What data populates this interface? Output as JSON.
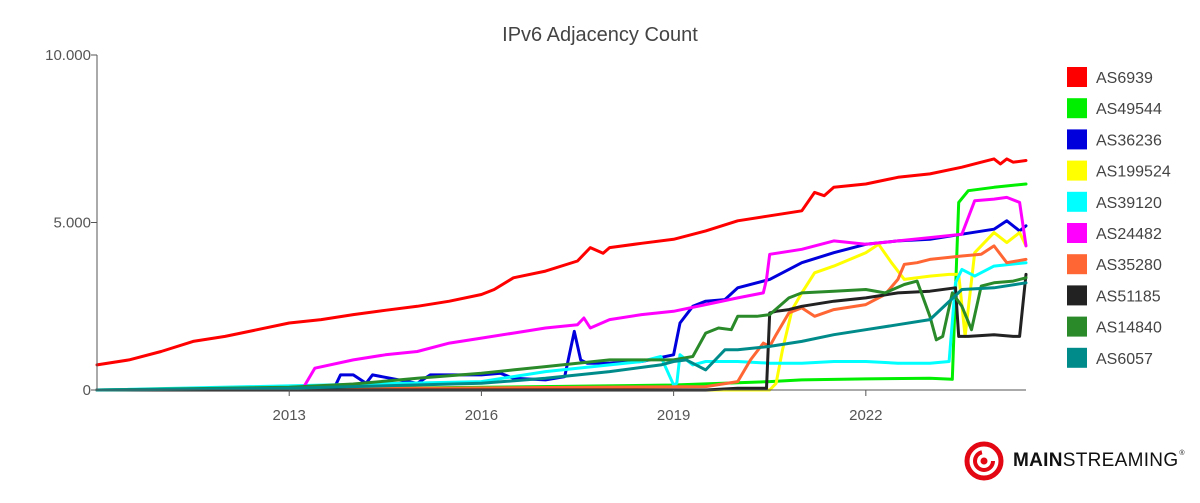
{
  "chart_data": {
    "type": "line",
    "title": "IPv6 Adjacency Count",
    "xlabel": "",
    "ylabel": "",
    "xlim": [
      2010.0,
      2024.5
    ],
    "ylim": [
      0,
      10000
    ],
    "x_ticks": [
      2013,
      2016,
      2019,
      2022
    ],
    "x_tick_labels": [
      "2013",
      "2016",
      "2019",
      "2022"
    ],
    "y_ticks": [
      0,
      5000,
      10000
    ],
    "y_tick_labels": [
      "0",
      "5.000",
      "10.000"
    ],
    "grid": false,
    "legend_position": "right",
    "series": [
      {
        "name": "AS6939",
        "color": "#ff0000",
        "x": [
          2010.0,
          2010.5,
          2011.0,
          2011.5,
          2012.0,
          2012.5,
          2013.0,
          2013.5,
          2014.0,
          2014.5,
          2015.0,
          2015.5,
          2016.0,
          2016.2,
          2016.5,
          2017.0,
          2017.5,
          2017.7,
          2017.9,
          2018.0,
          2018.5,
          2019.0,
          2019.5,
          2020.0,
          2020.5,
          2021.0,
          2021.2,
          2021.35,
          2021.5,
          2022.0,
          2022.5,
          2023.0,
          2023.5,
          2023.8,
          2024.0,
          2024.1,
          2024.2,
          2024.3,
          2024.5
        ],
        "y": [
          750,
          900,
          1150,
          1450,
          1600,
          1800,
          2000,
          2100,
          2250,
          2380,
          2500,
          2650,
          2850,
          3000,
          3350,
          3550,
          3850,
          4250,
          4080,
          4250,
          4380,
          4500,
          4750,
          5050,
          5200,
          5350,
          5900,
          5800,
          6050,
          6150,
          6350,
          6450,
          6650,
          6800,
          6900,
          6750,
          6900,
          6800,
          6850
        ]
      },
      {
        "name": "AS49544",
        "color": "#00ee00",
        "x": [
          2010.0,
          2013.0,
          2016.0,
          2019.0,
          2020.5,
          2021.0,
          2022.0,
          2023.0,
          2023.35,
          2023.45,
          2023.6,
          2024.0,
          2024.5
        ],
        "y": [
          0,
          30,
          80,
          150,
          250,
          300,
          330,
          350,
          320,
          5600,
          5950,
          6050,
          6150
        ]
      },
      {
        "name": "AS36236",
        "color": "#0000dd",
        "x": [
          2010.0,
          2013.5,
          2013.7,
          2013.8,
          2014.0,
          2014.2,
          2014.3,
          2015.0,
          2015.2,
          2015.5,
          2016.0,
          2016.3,
          2016.5,
          2017.0,
          2017.3,
          2017.45,
          2017.55,
          2017.65,
          2018.0,
          2018.5,
          2019.0,
          2019.1,
          2019.3,
          2019.5,
          2019.8,
          2020.0,
          2020.5,
          2020.8,
          2021.0,
          2021.5,
          2022.0,
          2022.5,
          2023.0,
          2023.5,
          2024.0,
          2024.2,
          2024.4,
          2024.5
        ],
        "y": [
          0,
          0,
          50,
          450,
          450,
          200,
          450,
          200,
          450,
          450,
          450,
          500,
          350,
          300,
          400,
          1750,
          900,
          800,
          800,
          850,
          1050,
          2000,
          2500,
          2650,
          2700,
          3050,
          3300,
          3600,
          3800,
          4100,
          4350,
          4450,
          4500,
          4650,
          4800,
          5050,
          4750,
          4900
        ]
      },
      {
        "name": "AS199524",
        "color": "#ffff00",
        "x": [
          2010.0,
          2020.5,
          2020.6,
          2020.7,
          2020.85,
          2021.0,
          2021.2,
          2021.5,
          2022.0,
          2022.2,
          2022.4,
          2022.6,
          2022.8,
          2023.0,
          2023.3,
          2023.45,
          2023.55,
          2023.7,
          2024.0,
          2024.2,
          2024.4,
          2024.5
        ],
        "y": [
          0,
          0,
          200,
          1200,
          2400,
          2900,
          3500,
          3700,
          4100,
          4350,
          3800,
          3300,
          3350,
          3400,
          3450,
          3450,
          1600,
          4100,
          4700,
          4400,
          4700,
          4300
        ]
      },
      {
        "name": "AS39120",
        "color": "#00ffff",
        "x": [
          2010.0,
          2016.0,
          2016.5,
          2017.0,
          2017.5,
          2018.0,
          2018.5,
          2018.8,
          2019.0,
          2019.05,
          2019.1,
          2019.3,
          2019.5,
          2020.0,
          2020.5,
          2021.0,
          2021.5,
          2022.0,
          2022.5,
          2023.0,
          2023.3,
          2023.4,
          2023.5,
          2023.7,
          2024.0,
          2024.5
        ],
        "y": [
          0,
          250,
          400,
          550,
          650,
          750,
          850,
          1000,
          150,
          200,
          1050,
          750,
          850,
          850,
          800,
          800,
          850,
          850,
          800,
          800,
          850,
          3200,
          3600,
          3400,
          3700,
          3800
        ]
      },
      {
        "name": "AS24482",
        "color": "#ff00ff",
        "x": [
          2010.0,
          2013.2,
          2013.4,
          2014.0,
          2014.5,
          2015.0,
          2015.5,
          2016.0,
          2016.5,
          2017.0,
          2017.5,
          2017.6,
          2017.7,
          2018.0,
          2018.5,
          2019.0,
          2019.5,
          2020.0,
          2020.4,
          2020.45,
          2020.5,
          2021.0,
          2021.5,
          2022.0,
          2022.5,
          2023.0,
          2023.5,
          2023.7,
          2024.0,
          2024.2,
          2024.4,
          2024.5
        ],
        "y": [
          0,
          0,
          650,
          900,
          1050,
          1150,
          1400,
          1550,
          1700,
          1850,
          1950,
          2150,
          1850,
          2100,
          2250,
          2350,
          2550,
          2750,
          2900,
          3300,
          4050,
          4200,
          4450,
          4350,
          4450,
          4550,
          4650,
          5650,
          5700,
          5750,
          5600,
          4300
        ]
      },
      {
        "name": "AS35280",
        "color": "#ff6633",
        "x": [
          2010.0,
          2019.5,
          2020.0,
          2020.2,
          2020.4,
          2020.5,
          2020.6,
          2020.8,
          2021.0,
          2021.2,
          2021.5,
          2022.0,
          2022.3,
          2022.5,
          2022.6,
          2022.8,
          2023.0,
          2023.5,
          2023.8,
          2024.0,
          2024.2,
          2024.5
        ],
        "y": [
          0,
          100,
          250,
          900,
          1400,
          1300,
          1650,
          2300,
          2450,
          2200,
          2400,
          2550,
          2850,
          3300,
          3750,
          3800,
          3900,
          4000,
          4050,
          4300,
          3800,
          3900
        ]
      },
      {
        "name": "AS51185",
        "color": "#222222",
        "x": [
          2010.0,
          2019.5,
          2020.0,
          2020.45,
          2020.5,
          2020.6,
          2020.8,
          2021.0,
          2021.5,
          2022.0,
          2022.5,
          2023.0,
          2023.4,
          2023.45,
          2023.6,
          2024.0,
          2024.3,
          2024.4,
          2024.5
        ],
        "y": [
          0,
          0,
          50,
          50,
          2300,
          2350,
          2400,
          2500,
          2650,
          2750,
          2900,
          2950,
          3050,
          1600,
          1600,
          1650,
          1600,
          1600,
          3450
        ]
      },
      {
        "name": "AS14840",
        "color": "#2a8a2a",
        "x": [
          2010.0,
          2013.0,
          2014.0,
          2015.0,
          2016.0,
          2016.5,
          2017.0,
          2017.5,
          2018.0,
          2018.5,
          2019.0,
          2019.3,
          2019.5,
          2019.7,
          2019.9,
          2020.0,
          2020.3,
          2020.5,
          2020.8,
          2021.0,
          2021.5,
          2022.0,
          2022.3,
          2022.6,
          2022.8,
          2023.0,
          2023.1,
          2023.2,
          2023.35,
          2023.5,
          2023.65,
          2023.8,
          2024.0,
          2024.3,
          2024.5
        ],
        "y": [
          0,
          80,
          180,
          350,
          500,
          600,
          700,
          800,
          900,
          900,
          900,
          1000,
          1700,
          1850,
          1800,
          2200,
          2200,
          2250,
          2750,
          2900,
          2950,
          3000,
          2900,
          3150,
          3250,
          2200,
          1500,
          1600,
          2900,
          2500,
          1800,
          3100,
          3200,
          3250,
          3350
        ]
      },
      {
        "name": "AS6057",
        "color": "#008b8b",
        "x": [
          2010.0,
          2013.0,
          2016.0,
          2017.0,
          2018.0,
          2018.8,
          2019.0,
          2019.2,
          2019.5,
          2019.7,
          2019.8,
          2020.0,
          2020.5,
          2021.0,
          2021.5,
          2022.0,
          2022.5,
          2023.0,
          2023.5,
          2024.0,
          2024.5
        ],
        "y": [
          0,
          50,
          200,
          350,
          550,
          750,
          850,
          900,
          600,
          1000,
          1200,
          1200,
          1300,
          1450,
          1650,
          1800,
          1950,
          2100,
          3000,
          3050,
          3200
        ]
      }
    ]
  },
  "legend_items": [
    "AS6939",
    "AS49544",
    "AS36236",
    "AS199524",
    "AS39120",
    "AS24482",
    "AS35280",
    "AS51185",
    "AS14840",
    "AS6057"
  ],
  "colors": {
    "AS6939": "#ff0000",
    "AS49544": "#00ee00",
    "AS36236": "#0000dd",
    "AS199524": "#ffff00",
    "AS39120": "#00ffff",
    "AS24482": "#ff00ff",
    "AS35280": "#ff6633",
    "AS51185": "#222222",
    "AS14840": "#2a8a2a",
    "AS6057": "#008b8b",
    "logo_red": "#e30613"
  },
  "logo": {
    "icon": "mainstreaming-ring-icon",
    "text_bold": "MAIN",
    "text_light": "STREAMING",
    "trademark": "®"
  }
}
